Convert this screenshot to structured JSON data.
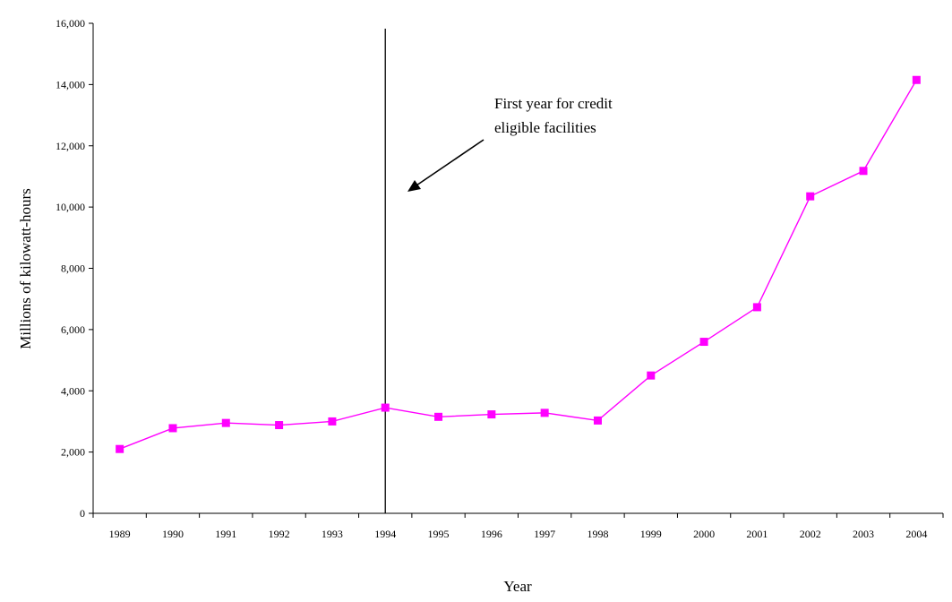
{
  "chart_data": {
    "type": "line",
    "title": "",
    "xlabel": "Year",
    "ylabel": "Millions of kilowatt-hours",
    "ylim": [
      0,
      16000
    ],
    "yticks": [
      "0",
      "2,000",
      "4,000",
      "6,000",
      "8,000",
      "10,000",
      "12,000",
      "14,000",
      "16,000"
    ],
    "categories": [
      "1989",
      "1990",
      "1991",
      "1992",
      "1993",
      "1994",
      "1995",
      "1996",
      "1997",
      "1998",
      "1999",
      "2000",
      "2001",
      "2002",
      "2003",
      "2004"
    ],
    "series": [
      {
        "values": [
          2100,
          2780,
          2950,
          2880,
          3000,
          3450,
          3150,
          3230,
          3280,
          3030,
          4500,
          5600,
          6730,
          10350,
          11180,
          14150
        ],
        "color": "#ff00ff",
        "marker": "square"
      }
    ],
    "reference_line": {
      "category": "1994"
    },
    "annotation": {
      "lines": [
        "First year for credit",
        "eligible facilities"
      ]
    },
    "grid": false,
    "legend": "none"
  }
}
